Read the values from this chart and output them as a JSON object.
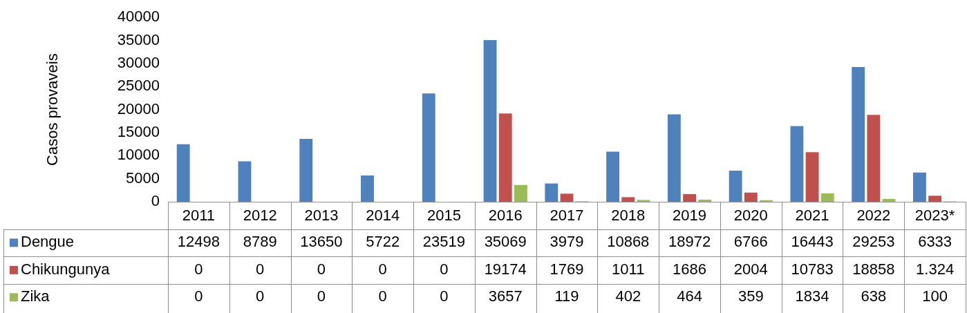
{
  "chart_data": {
    "type": "bar",
    "ylabel": "Casos provaveis",
    "categories": [
      "2011",
      "2012",
      "2013",
      "2014",
      "2015",
      "2016",
      "2017",
      "2018",
      "2019",
      "2020",
      "2021",
      "2022",
      "2023*"
    ],
    "ylim": [
      0,
      40000
    ],
    "yticks": [
      0,
      5000,
      10000,
      15000,
      20000,
      25000,
      30000,
      35000,
      40000
    ],
    "grid": false,
    "legend": "bottom left",
    "series": [
      {
        "name": "Dengue",
        "color": "#4f81bd",
        "values": [
          12498,
          8789,
          13650,
          5722,
          23519,
          35069,
          3979,
          10868,
          18972,
          6766,
          16443,
          29253,
          6333
        ],
        "value_labels": [
          "12498",
          "8789",
          "13650",
          "5722",
          "23519",
          "35069",
          "3979",
          "10868",
          "18972",
          "6766",
          "16443",
          "29253",
          "6333"
        ]
      },
      {
        "name": "Chikungunya",
        "color": "#c0504d",
        "values": [
          0,
          0,
          0,
          0,
          0,
          19174,
          1769,
          1011,
          1686,
          2004,
          10783,
          18858,
          1324
        ],
        "value_labels": [
          "0",
          "0",
          "0",
          "0",
          "0",
          "19174",
          "1769",
          "1011",
          "1686",
          "2004",
          "10783",
          "18858",
          "1.324"
        ]
      },
      {
        "name": "Zika",
        "color": "#9bbb59",
        "values": [
          0,
          0,
          0,
          0,
          0,
          3657,
          119,
          402,
          464,
          359,
          1834,
          638,
          100
        ],
        "value_labels": [
          "0",
          "0",
          "0",
          "0",
          "0",
          "3657",
          "119",
          "402",
          "464",
          "359",
          "1834",
          "638",
          "100"
        ]
      }
    ]
  }
}
